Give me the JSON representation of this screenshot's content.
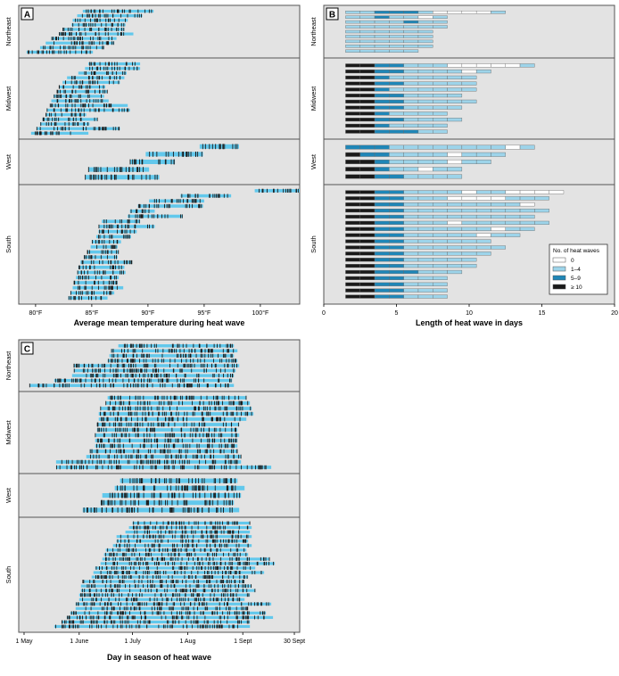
{
  "figure": {
    "colors": {
      "panel_bg": "#e3e3e3",
      "light_blue": "#9dd4ea",
      "cyan": "#62c8ec",
      "dark_blue": "#1f86b7",
      "black": "#1a1a1a",
      "white": "#ffffff",
      "border": "#555555"
    }
  },
  "chart_data": [
    {
      "panel": "A",
      "type": "bar",
      "xlabel": "Average mean temperature during heat wave",
      "xlim": [
        78.5,
        103.5
      ],
      "ticks": [
        80,
        85,
        90,
        95,
        100
      ],
      "tick_labels": [
        "80°F",
        "85°F",
        "90°F",
        "95°F",
        "100°F"
      ],
      "regions": [
        {
          "name": "Northeast",
          "bars": [
            [
              84.2,
              90.5
            ],
            [
              83.7,
              89.5
            ],
            [
              83.3,
              88.2
            ],
            [
              83.2,
              88.0
            ],
            [
              82.4,
              87.9
            ],
            [
              82.1,
              88.7
            ],
            [
              81.4,
              87.2
            ],
            [
              80.9,
              87.0
            ],
            [
              80.4,
              86.1
            ],
            [
              79.2,
              85.1
            ]
          ]
        },
        {
          "name": "Midwest",
          "bars": [
            [
              84.7,
              89.3
            ],
            [
              84.4,
              89.3
            ],
            [
              83.8,
              88.1
            ],
            [
              82.8,
              87.9
            ],
            [
              82.4,
              87.5
            ],
            [
              82.1,
              86.2
            ],
            [
              81.9,
              86.4
            ],
            [
              81.6,
              86.1
            ],
            [
              81.4,
              86.5
            ],
            [
              81.3,
              88.2
            ],
            [
              81.0,
              88.4
            ],
            [
              80.9,
              84.5
            ],
            [
              80.6,
              85.5
            ],
            [
              80.4,
              84.8
            ],
            [
              80.1,
              87.5
            ],
            [
              79.6,
              84.7
            ]
          ]
        },
        {
          "name": "West",
          "bars": [
            [
              94.6,
              98.1
            ],
            [
              89.8,
              94.9
            ],
            [
              88.4,
              92.4
            ],
            [
              84.7,
              90.1
            ],
            [
              84.4,
              91.0
            ]
          ]
        },
        {
          "name": "South",
          "bars": [
            [
              99.5,
              103.5
            ],
            [
              92.9,
              97.4
            ],
            [
              90.1,
              95.0
            ],
            [
              89.1,
              94.9
            ],
            [
              88.4,
              90.6
            ],
            [
              88.2,
              93.1
            ],
            [
              85.9,
              89.3
            ],
            [
              85.6,
              90.6
            ],
            [
              85.6,
              89.0
            ],
            [
              85.4,
              88.5
            ],
            [
              85.0,
              87.6
            ],
            [
              84.9,
              87.3
            ],
            [
              84.6,
              87.4
            ],
            [
              84.3,
              87.3
            ],
            [
              84.0,
              88.6
            ],
            [
              83.8,
              87.9
            ],
            [
              83.7,
              88.0
            ],
            [
              83.6,
              87.4
            ],
            [
              83.4,
              87.3
            ],
            [
              83.3,
              87.8
            ],
            [
              83.1,
              87.0
            ],
            [
              82.9,
              86.4
            ]
          ]
        }
      ]
    },
    {
      "panel": "B",
      "type": "bar",
      "xlabel": "Length of heat wave in days",
      "xlim": [
        0,
        20
      ],
      "ticks": [
        0,
        5,
        10,
        15,
        20
      ],
      "tick_labels": [
        "0",
        "5",
        "10",
        "15",
        "20"
      ],
      "legend": {
        "title": "No. of heat waves",
        "position": "right, within South",
        "entries": [
          "0",
          "1–4",
          "5–9",
          "≥ 10"
        ]
      },
      "regions": [
        {
          "name": "Northeast",
          "rows": [
            [
              1,
              1,
              2,
              2,
              2,
              1,
              0,
              0,
              0,
              0,
              1
            ],
            [
              1,
              1,
              2,
              1,
              1,
              0,
              1
            ],
            [
              1,
              1,
              1,
              1,
              2,
              1,
              1
            ],
            [
              1,
              1,
              1,
              1,
              1,
              1,
              1
            ],
            [
              1,
              1,
              1,
              1,
              1,
              1
            ],
            [
              1,
              1,
              1,
              1,
              1,
              1
            ],
            [
              1,
              1,
              1,
              1,
              1,
              1
            ],
            [
              1,
              1,
              1,
              1,
              1,
              1
            ],
            [
              1,
              1,
              1,
              1,
              1
            ]
          ]
        },
        {
          "name": "Midwest",
          "rows": [
            [
              3,
              3,
              2,
              2,
              1,
              1,
              1,
              0,
              0,
              0,
              0,
              0,
              1
            ],
            [
              3,
              3,
              2,
              2,
              1,
              1,
              1,
              1,
              0,
              1
            ],
            [
              3,
              3,
              2,
              1,
              1,
              1,
              1,
              1,
              1
            ],
            [
              3,
              3,
              2,
              2,
              1,
              1,
              1,
              1,
              1
            ],
            [
              3,
              3,
              2,
              1,
              1,
              1,
              1,
              1,
              1
            ],
            [
              3,
              3,
              2,
              2,
              1,
              1,
              1,
              1
            ],
            [
              3,
              3,
              2,
              2,
              1,
              1,
              1,
              1,
              1
            ],
            [
              3,
              3,
              2,
              2,
              1,
              1,
              1,
              1
            ],
            [
              3,
              3,
              2,
              1,
              1,
              1,
              1
            ],
            [
              3,
              3,
              2,
              2,
              1,
              1,
              1,
              1
            ],
            [
              3,
              3,
              2,
              1,
              1,
              1,
              1
            ],
            [
              3,
              3,
              2,
              2,
              2,
              1,
              1
            ]
          ]
        },
        {
          "name": "West",
          "rows": [
            [
              2,
              2,
              2,
              1,
              1,
              1,
              1,
              1,
              1,
              1,
              1,
              0,
              1
            ],
            [
              3,
              2,
              2,
              1,
              1,
              1,
              1,
              0,
              1,
              1,
              1
            ],
            [
              3,
              3,
              2,
              1,
              1,
              1,
              1,
              0,
              1,
              1
            ],
            [
              3,
              3,
              2,
              1,
              1,
              0,
              1,
              1
            ],
            [
              3,
              3,
              2,
              2,
              1,
              1,
              1,
              1
            ]
          ]
        },
        {
          "name": "South",
          "rows": [
            [
              3,
              3,
              2,
              2,
              1,
              1,
              1,
              1,
              0,
              1,
              1,
              0,
              0,
              0,
              0
            ],
            [
              3,
              3,
              2,
              2,
              1,
              1,
              1,
              0,
              0,
              0,
              0,
              1,
              1,
              1
            ],
            [
              3,
              3,
              2,
              2,
              1,
              1,
              1,
              1,
              1,
              1,
              1,
              1,
              0
            ],
            [
              3,
              3,
              2,
              2,
              1,
              1,
              1,
              1,
              1,
              1,
              1,
              1,
              1,
              1
            ],
            [
              3,
              3,
              2,
              2,
              1,
              1,
              1,
              1,
              1,
              1,
              1,
              1,
              1
            ],
            [
              3,
              3,
              2,
              2,
              1,
              1,
              1,
              0,
              1,
              1,
              1,
              1,
              1,
              1
            ],
            [
              3,
              3,
              2,
              2,
              1,
              1,
              1,
              1,
              1,
              1,
              0,
              1,
              1
            ],
            [
              3,
              3,
              2,
              2,
              1,
              1,
              1,
              1,
              1,
              0,
              1,
              1
            ],
            [
              3,
              3,
              2,
              2,
              1,
              1,
              1,
              1,
              1,
              1
            ],
            [
              3,
              3,
              2,
              2,
              1,
              1,
              1,
              1,
              1,
              1,
              1
            ],
            [
              3,
              3,
              2,
              2,
              1,
              1,
              1,
              1,
              1,
              1
            ],
            [
              3,
              3,
              2,
              2,
              1,
              1,
              1,
              1,
              1
            ],
            [
              3,
              3,
              2,
              2,
              1,
              1,
              1,
              1,
              1
            ],
            [
              3,
              3,
              2,
              2,
              2,
              1,
              1,
              1
            ],
            [
              3,
              3,
              2,
              2,
              1,
              1,
              1
            ],
            [
              3,
              3,
              2,
              2,
              1,
              1,
              1
            ],
            [
              3,
              3,
              2,
              2,
              1,
              1,
              1
            ],
            [
              3,
              3,
              2,
              2,
              1,
              1,
              1
            ]
          ]
        }
      ]
    },
    {
      "panel": "C",
      "type": "bar",
      "xlabel": "Day in season of heat wave",
      "xlim": [
        -3,
        155
      ],
      "ticks": [
        0,
        31,
        61,
        92,
        123,
        152
      ],
      "tick_labels": [
        "1 May",
        "1 June",
        "1 July",
        "1 Aug",
        "1 Sept",
        "30 Sept"
      ],
      "regions": [
        {
          "name": "Northeast",
          "bars": [
            [
              53,
              118
            ],
            [
              49,
              120
            ],
            [
              48,
              118
            ],
            [
              47,
              120
            ],
            [
              28,
              121
            ],
            [
              28,
              119
            ],
            [
              27,
              118
            ],
            [
              17,
              117
            ],
            [
              3,
              118
            ]
          ]
        },
        {
          "name": "Midwest",
          "bars": [
            [
              47,
              125
            ],
            [
              46,
              127
            ],
            [
              43,
              128
            ],
            [
              42,
              129
            ],
            [
              42,
              125
            ],
            [
              41,
              121
            ],
            [
              41,
              120
            ],
            [
              40,
              121
            ],
            [
              40,
              120
            ],
            [
              40,
              120
            ],
            [
              37,
              120
            ],
            [
              35,
              122
            ],
            [
              18,
              122
            ],
            [
              18,
              139
            ]
          ]
        },
        {
          "name": "West",
          "bars": [
            [
              54,
              120
            ],
            [
              51,
              124
            ],
            [
              44,
              122
            ],
            [
              43,
              118
            ],
            [
              33,
              121
            ]
          ]
        },
        {
          "name": "South",
          "bars": [
            [
              61,
              127
            ],
            [
              59,
              128
            ],
            [
              57,
              127
            ],
            [
              52,
              128
            ],
            [
              52,
              126
            ],
            [
              50,
              128
            ],
            [
              46,
              125
            ],
            [
              45,
              126
            ],
            [
              44,
              138
            ],
            [
              43,
              141
            ],
            [
              40,
              130
            ],
            [
              39,
              135
            ],
            [
              38,
              126
            ],
            [
              33,
              124
            ],
            [
              32,
              128
            ],
            [
              32,
              130
            ],
            [
              31,
              127
            ],
            [
              31,
              124
            ],
            [
              29,
              139
            ],
            [
              29,
              126
            ],
            [
              26,
              136
            ],
            [
              24,
              140
            ],
            [
              21,
              127
            ],
            [
              17,
              127
            ]
          ]
        }
      ]
    }
  ]
}
